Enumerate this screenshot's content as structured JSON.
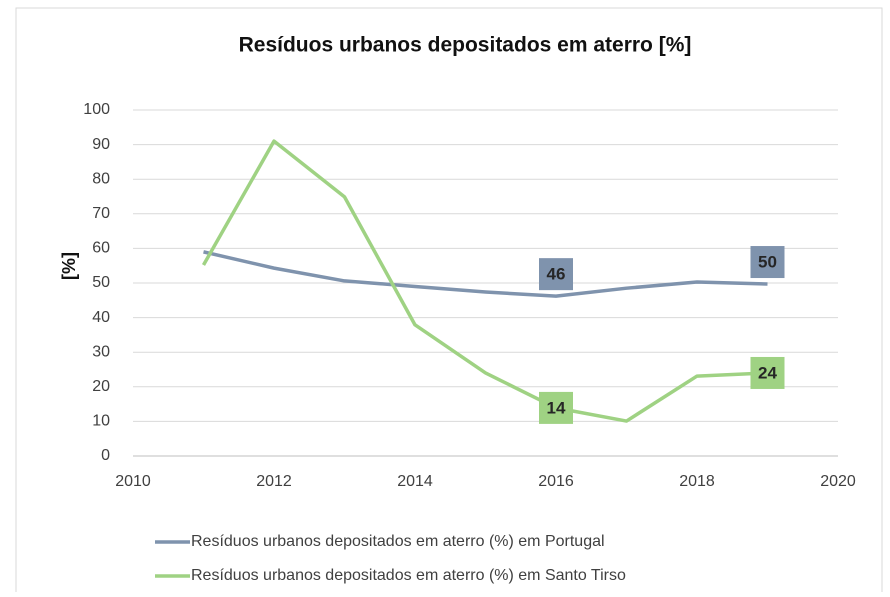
{
  "chart_data": {
    "type": "line",
    "title": "Resíduos urbanos depositados em aterro [%]",
    "y_label": "[%]",
    "x": [
      2011,
      2012,
      2013,
      2014,
      2015,
      2016,
      2017,
      2018,
      2019
    ],
    "series": [
      {
        "name": "Resíduos urbanos depositados em aterro (%) em Portugal",
        "color": "#7f93ad",
        "values": [
          59,
          54.3,
          50.6,
          49,
          47.4,
          46.2,
          48.5,
          50.3,
          49.7
        ],
        "value_labels": [
          null,
          null,
          null,
          null,
          null,
          "46",
          null,
          null,
          "50"
        ]
      },
      {
        "name": "Resíduos urbanos depositados em aterro (%) em Santo Tirso",
        "color": "#9fd283",
        "values": [
          55.2,
          91,
          74.9,
          37.9,
          24,
          13.9,
          10.1,
          23.1,
          24
        ],
        "value_labels": [
          null,
          null,
          null,
          null,
          null,
          "14",
          null,
          null,
          "24"
        ]
      }
    ],
    "xlim": [
      2010,
      2020
    ],
    "xticks": [
      2010,
      2012,
      2014,
      2016,
      2018,
      2020
    ],
    "ylim": [
      0,
      100
    ],
    "yticks": [
      0,
      10,
      20,
      30,
      40,
      50,
      60,
      70,
      80,
      90,
      100
    ],
    "grid": true,
    "legend": "bottom"
  }
}
